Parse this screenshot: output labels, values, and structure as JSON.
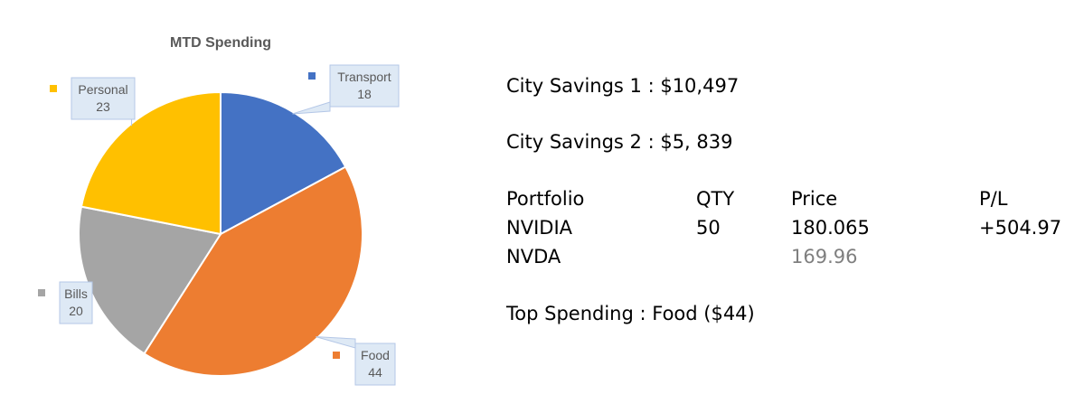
{
  "chart_data": {
    "type": "pie",
    "title": "MTD Spending",
    "slices": [
      {
        "label": "Transport",
        "value": 18,
        "color": "#4472c4"
      },
      {
        "label": "Food",
        "value": 44,
        "color": "#ed7d31"
      },
      {
        "label": "Bills",
        "value": 20,
        "color": "#a5a5a5"
      },
      {
        "label": "Personal",
        "value": 23,
        "color": "#ffc000"
      }
    ],
    "legend": "none",
    "data_labels": "callouts with category name and value"
  },
  "info": {
    "savings_1": "City Savings 1 : $10,497",
    "savings_2": "City Savings 2 : $5, 839",
    "portfolio": {
      "headers": [
        "Portfolio",
        "QTY",
        "Price",
        "P/L"
      ],
      "rows": [
        [
          "NVIDIA",
          "50",
          "180.065",
          "+504.97"
        ],
        [
          "NVDA",
          "",
          "169.96",
          ""
        ]
      ]
    },
    "top_spending": "Top Spending : Food ($44)"
  }
}
